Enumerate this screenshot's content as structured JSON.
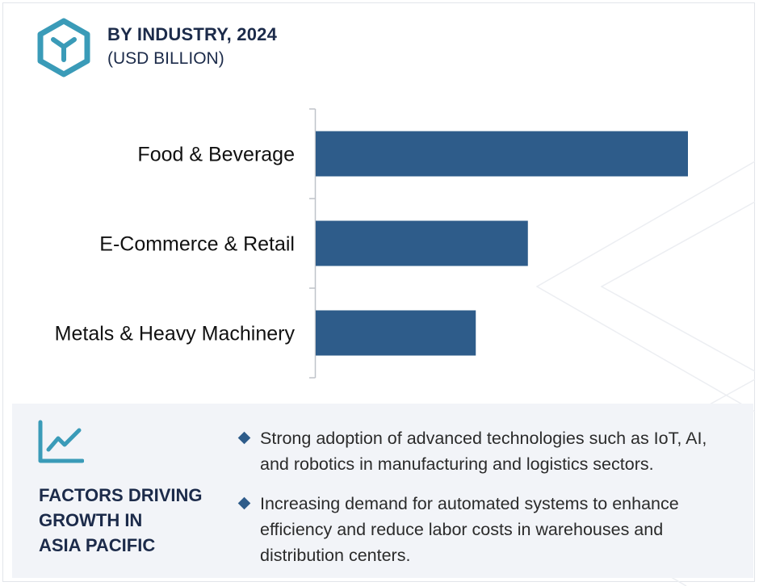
{
  "header": {
    "title": "BY INDUSTRY, 2024",
    "subtitle": "(USD BILLION)",
    "icon": "cube-logo-icon"
  },
  "chart_data": {
    "type": "bar",
    "orientation": "horizontal",
    "title": "BY INDUSTRY, 2024",
    "subtitle": "(USD BILLION)",
    "categories": [
      "Food & Beverage",
      "E-Commerce & Retail",
      "Metals & Heavy Machinery"
    ],
    "values": [
      100,
      57,
      43
    ],
    "xlim": [
      0,
      100
    ],
    "value_axis_visible": false,
    "grid": false,
    "legend": "none",
    "bar_color": "#2e5c8a"
  },
  "factors": {
    "icon": "line-chart-icon",
    "title_lines": [
      "FACTORS DRIVING",
      "GROWTH IN",
      "ASIA PACIFIC"
    ],
    "bullets": [
      "Strong adoption of advanced technologies such as IoT, AI, and robotics in manufacturing and logistics sectors.",
      "Increasing demand for automated systems to enhance efficiency and reduce labor costs in warehouses and distribution centers."
    ]
  },
  "colors": {
    "accent": "#2e5c8a",
    "icon_teal": "#3a9bb8",
    "heading": "#1c2b4a",
    "panel_bg": "#f2f4f8"
  }
}
